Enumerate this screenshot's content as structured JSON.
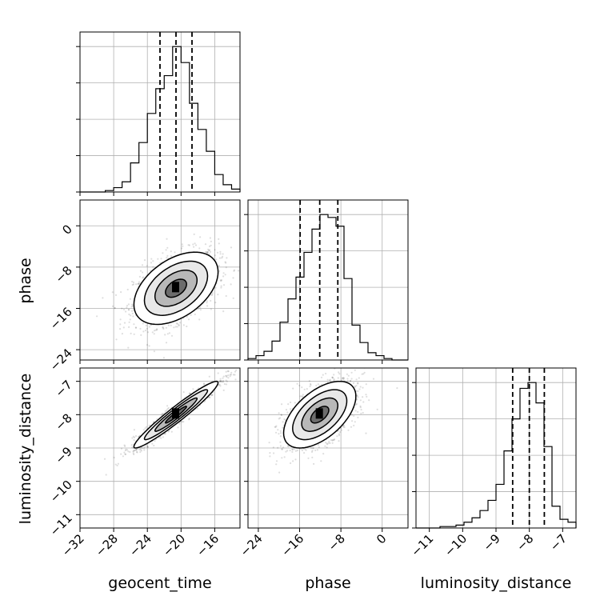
{
  "chart_data": {
    "type": "corner",
    "parameters": [
      "geocent_time",
      "phase",
      "luminosity_distance"
    ],
    "ranges": {
      "geocent_time": [
        -32,
        -13
      ],
      "phase": [
        -26,
        5
      ],
      "luminosity_distance": [
        -11.4,
        -6.6
      ]
    },
    "ticks": {
      "geocent_time": [
        -32,
        -28,
        -24,
        -20,
        -16
      ],
      "phase": [
        -24,
        -16,
        -8,
        0
      ],
      "luminosity_distance": [
        -11,
        -10,
        -9,
        -8,
        -7
      ]
    },
    "quantiles": {
      "geocent_time": [
        -22.5,
        -20.6,
        -18.7
      ],
      "phase": [
        -15.9,
        -12.1,
        -8.6
      ],
      "luminosity_distance": [
        -8.5,
        -8.0,
        -7.55
      ]
    },
    "histograms": {
      "geocent_time": {
        "bin_edges": [
          -32,
          -31,
          -30,
          -29,
          -28,
          -27,
          -26,
          -25,
          -24,
          -23,
          -22,
          -21,
          -20,
          -19,
          -18,
          -17,
          -16,
          -15,
          -14,
          -13
        ],
        "heights": [
          0.0,
          0.0,
          0.0,
          0.01,
          0.03,
          0.07,
          0.2,
          0.34,
          0.54,
          0.71,
          0.8,
          1.0,
          0.89,
          0.61,
          0.43,
          0.28,
          0.12,
          0.05,
          0.02
        ]
      },
      "phase": {
        "bin_edges": [
          -26,
          -24.45,
          -22.9,
          -21.35,
          -19.8,
          -18.25,
          -16.7,
          -15.15,
          -13.6,
          -12.05,
          -10.5,
          -8.95,
          -7.4,
          -5.85,
          -4.3,
          -2.75,
          -1.2,
          0.35,
          1.9,
          3.45,
          5
        ],
        "heights": [
          0.01,
          0.03,
          0.06,
          0.13,
          0.26,
          0.42,
          0.57,
          0.74,
          0.9,
          1.0,
          0.98,
          0.92,
          0.56,
          0.24,
          0.12,
          0.05,
          0.03,
          0.01,
          0.0,
          0.0
        ]
      },
      "luminosity_distance": {
        "bin_edges": [
          -11.4,
          -11.16,
          -10.92,
          -10.68,
          -10.44,
          -10.2,
          -9.96,
          -9.72,
          -9.48,
          -9.24,
          -9.0,
          -8.76,
          -8.52,
          -8.28,
          -8.04,
          -7.8,
          -7.56,
          -7.32,
          -7.08,
          -6.84,
          -6.6
        ],
        "heights": [
          0.0,
          0.0,
          0.0,
          0.01,
          0.01,
          0.02,
          0.04,
          0.07,
          0.12,
          0.19,
          0.3,
          0.53,
          0.75,
          0.96,
          1.0,
          0.86,
          0.56,
          0.15,
          0.06,
          0.04
        ]
      }
    },
    "pairs": [
      {
        "x": "geocent_time",
        "y": "phase",
        "center": [
          -20.6,
          -12.1
        ],
        "sd": [
          2.5,
          3.5
        ],
        "corr": 0.45
      },
      {
        "x": "geocent_time",
        "y": "luminosity_distance",
        "center": [
          -20.6,
          -8.0
        ],
        "sd": [
          2.5,
          0.5
        ],
        "corr": 0.96
      },
      {
        "x": "phase",
        "y": "luminosity_distance",
        "center": [
          -12.1,
          -8.0
        ],
        "sd": [
          3.5,
          0.5
        ],
        "corr": 0.55
      }
    ],
    "grid": true
  }
}
